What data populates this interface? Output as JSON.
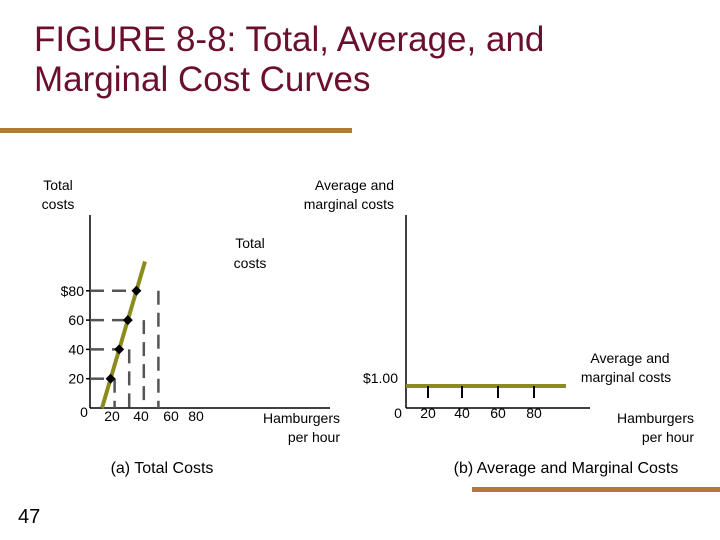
{
  "slide": {
    "title_line1": "FIGURE 8-8: Total, Average, and",
    "title_line2": "Marginal Cost Curves",
    "page_number": "47",
    "title_color": "#6b0f2e",
    "rule_color": "#b07a3a"
  },
  "chart_data": [
    {
      "type": "line",
      "caption": "(a) Total Costs",
      "ylabel": "Total costs",
      "xlabel_line1": "Hamburgers",
      "xlabel_line2": "per hour",
      "line_label_line1": "Total",
      "line_label_line2": "costs",
      "origin_label": "0",
      "x_ticks": [
        "20",
        "40",
        "60",
        "80"
      ],
      "y_ticks": [
        "20",
        "40",
        "60",
        "$80"
      ],
      "xlim": [
        0,
        150
      ],
      "ylim": [
        0,
        100
      ],
      "guides": "dashed",
      "series": [
        {
          "x": [
            0,
            20,
            40,
            60,
            80,
            100
          ],
          "y": [
            0,
            20,
            40,
            60,
            80,
            100
          ],
          "color": "#8c8c1e"
        }
      ],
      "points": [
        {
          "x": 20,
          "y": 20
        },
        {
          "x": 40,
          "y": 40
        },
        {
          "x": 60,
          "y": 60
        },
        {
          "x": 80,
          "y": 80
        }
      ]
    },
    {
      "type": "line",
      "caption": "(b) Average and Marginal Costs",
      "ylabel_line1": "Average and",
      "ylabel_line2": "marginal costs",
      "xlabel_line1": "Hamburgers",
      "xlabel_line2": "per hour",
      "line_label_line1": "Average and",
      "line_label_line2": "marginal costs",
      "origin_label": "0",
      "x_ticks": [
        "20",
        "40",
        "60",
        "80"
      ],
      "y_tick": "$1.00",
      "series": [
        {
          "x": [
            0,
            100
          ],
          "y": [
            1.0,
            1.0
          ],
          "color": "#8c8c1e"
        }
      ]
    }
  ]
}
